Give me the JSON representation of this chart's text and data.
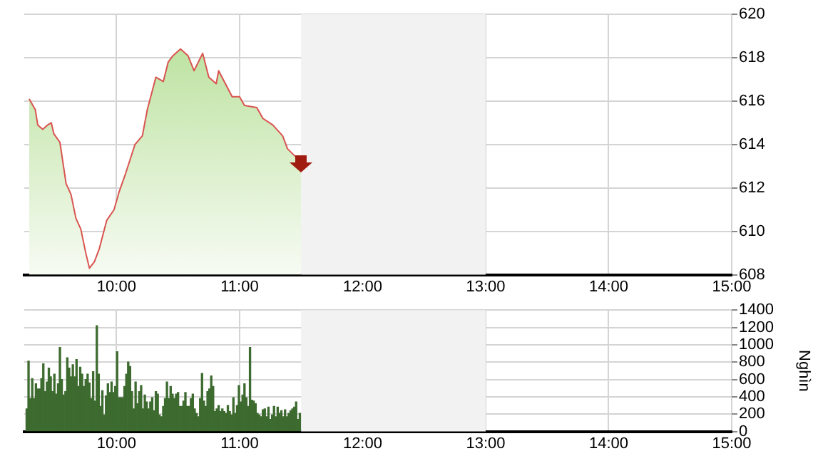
{
  "chart_data": [
    {
      "type": "area",
      "color": "#d9534f",
      "x": [
        9.29,
        9.34,
        9.36,
        9.4,
        9.44,
        9.47,
        9.49,
        9.54,
        9.59,
        9.63,
        9.67,
        9.71,
        9.75,
        9.78,
        9.82,
        9.86,
        9.92,
        9.98,
        10.02,
        10.07,
        10.15,
        10.21,
        10.25,
        10.32,
        10.38,
        10.42,
        10.46,
        10.52,
        10.58,
        10.63,
        10.7,
        10.75,
        10.81,
        10.83,
        10.94,
        11.0,
        11.04,
        11.14,
        11.19,
        11.27,
        11.35,
        11.39,
        11.48,
        11.5
      ],
      "values": [
        616.1,
        615.6,
        614.9,
        614.7,
        614.9,
        615.0,
        614.5,
        614.1,
        612.2,
        611.7,
        610.6,
        610.1,
        609.0,
        608.3,
        608.6,
        609.2,
        610.5,
        611.0,
        611.8,
        612.6,
        614.0,
        614.4,
        615.6,
        617.1,
        616.9,
        617.8,
        618.1,
        618.4,
        618.1,
        617.4,
        618.2,
        617.1,
        616.8,
        617.4,
        616.2,
        616.2,
        615.8,
        615.7,
        615.2,
        614.9,
        614.4,
        613.8,
        613.3,
        613.2
      ],
      "xlim": [
        9.25,
        15
      ],
      "xticks": [
        {
          "value": 10,
          "label": "10:00"
        },
        {
          "value": 11,
          "label": "11:00"
        },
        {
          "value": 12,
          "label": "12:00"
        },
        {
          "value": 13,
          "label": "13:00"
        },
        {
          "value": 14,
          "label": "14:00"
        },
        {
          "value": 15,
          "label": "15:00"
        }
      ],
      "ylim": [
        608,
        620
      ],
      "yticks": [
        608,
        610,
        612,
        614,
        616,
        618,
        620
      ],
      "grid": true,
      "bands": [
        {
          "axis": "x",
          "from": 11.5,
          "to": 13,
          "color": "#f2f2f2"
        }
      ]
    },
    {
      "type": "bar",
      "color": "#3d6b2f",
      "ylabel": "Nghìn",
      "x": [
        9.27,
        9.285,
        9.3,
        9.315,
        9.33,
        9.345,
        9.36,
        9.375,
        9.39,
        9.405,
        9.42,
        9.435,
        9.45,
        9.465,
        9.48,
        9.495,
        9.51,
        9.525,
        9.54,
        9.555,
        9.57,
        9.585,
        9.6,
        9.615,
        9.63,
        9.645,
        9.66,
        9.675,
        9.69,
        9.705,
        9.72,
        9.735,
        9.75,
        9.765,
        9.78,
        9.795,
        9.81,
        9.825,
        9.84,
        9.855,
        9.87,
        9.885,
        9.9,
        9.915,
        9.93,
        9.945,
        9.96,
        9.975,
        9.99,
        10.005,
        10.02,
        10.035,
        10.05,
        10.065,
        10.08,
        10.095,
        10.11,
        10.125,
        10.14,
        10.155,
        10.17,
        10.185,
        10.2,
        10.215,
        10.23,
        10.245,
        10.26,
        10.275,
        10.29,
        10.305,
        10.32,
        10.335,
        10.35,
        10.365,
        10.38,
        10.395,
        10.41,
        10.425,
        10.44,
        10.455,
        10.47,
        10.485,
        10.5,
        10.515,
        10.53,
        10.545,
        10.56,
        10.575,
        10.59,
        10.605,
        10.62,
        10.635,
        10.65,
        10.665,
        10.68,
        10.695,
        10.71,
        10.725,
        10.74,
        10.755,
        10.77,
        10.785,
        10.8,
        10.815,
        10.83,
        10.845,
        10.86,
        10.875,
        10.89,
        10.905,
        10.92,
        10.935,
        10.95,
        10.965,
        10.98,
        10.995,
        11.01,
        11.025,
        11.04,
        11.055,
        11.07,
        11.085,
        11.1,
        11.115,
        11.13,
        11.145,
        11.16,
        11.175,
        11.19,
        11.205,
        11.22,
        11.235,
        11.25,
        11.265,
        11.28,
        11.295,
        11.31,
        11.325,
        11.34,
        11.355,
        11.37,
        11.385,
        11.4,
        11.415,
        11.43,
        11.445,
        11.46,
        11.475,
        11.49
      ],
      "values": [
        260,
        810,
        380,
        610,
        380,
        550,
        490,
        490,
        610,
        780,
        460,
        570,
        730,
        630,
        460,
        660,
        430,
        550,
        970,
        600,
        420,
        460,
        850,
        730,
        630,
        770,
        630,
        830,
        520,
        740,
        660,
        520,
        600,
        660,
        560,
        380,
        690,
        350,
        1220,
        660,
        290,
        470,
        190,
        410,
        550,
        450,
        570,
        450,
        520,
        920,
        390,
        390,
        390,
        520,
        660,
        800,
        750,
        460,
        260,
        570,
        320,
        460,
        530,
        260,
        420,
        340,
        260,
        340,
        390,
        240,
        460,
        430,
        190,
        170,
        290,
        380,
        570,
        380,
        520,
        430,
        380,
        430,
        450,
        290,
        290,
        350,
        450,
        290,
        290,
        380,
        430,
        260,
        210,
        170,
        380,
        670,
        350,
        290,
        460,
        490,
        640,
        520,
        230,
        260,
        300,
        230,
        260,
        230,
        210,
        300,
        230,
        190,
        390,
        210,
        300,
        530,
        340,
        420,
        550,
        390,
        290,
        970,
        360,
        350,
        320,
        210,
        190,
        170,
        250,
        260,
        170,
        280,
        140,
        190,
        290,
        170,
        280,
        210,
        240,
        170,
        250,
        170,
        210,
        240,
        260,
        280,
        340,
        140,
        210
      ],
      "xlim": [
        9.25,
        15
      ],
      "xticks": [
        {
          "value": 10,
          "label": "10:00"
        },
        {
          "value": 11,
          "label": "11:00"
        },
        {
          "value": 12,
          "label": "12:00"
        },
        {
          "value": 13,
          "label": "13:00"
        },
        {
          "value": 14,
          "label": "14:00"
        },
        {
          "value": 15,
          "label": "15:00"
        }
      ],
      "ylim": [
        0,
        1400
      ],
      "yticks": [
        0,
        200,
        400,
        600,
        800,
        1000,
        1200,
        1400
      ],
      "grid": true,
      "bands": [
        {
          "axis": "x",
          "from": 11.5,
          "to": 13,
          "color": "#f2f2f2"
        }
      ]
    }
  ]
}
